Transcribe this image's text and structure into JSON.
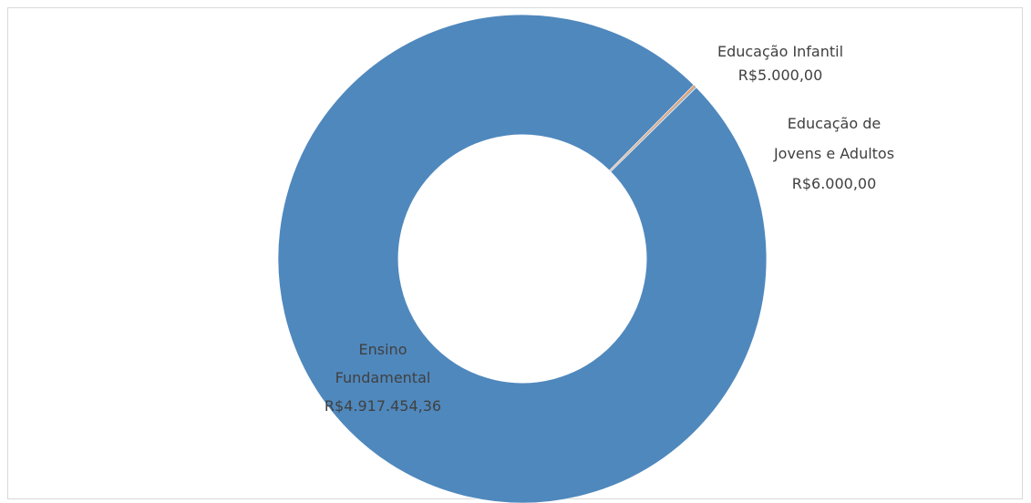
{
  "chart_data": {
    "type": "pie",
    "variant": "donut",
    "categories": [
      "Educação Infantil",
      "Educação de Jovens e Adultos",
      "Ensino Fundamental"
    ],
    "values": [
      5000.0,
      6000.0,
      4917454.36
    ],
    "value_labels": [
      "R$5.000,00",
      "R$6.000,00",
      "R$4.917.454,36"
    ],
    "label_lines": [
      [
        "Educação Infantil",
        "R$5.000,00"
      ],
      [
        "Educação de",
        "Jovens e Adultos",
        "R$6.000,00"
      ],
      [
        "Ensino",
        "Fundamental",
        "R$4.917.454,36"
      ]
    ],
    "colors": [
      "#ED7D31",
      "#A5A5A5",
      "#4F88BD"
    ],
    "title": "",
    "legend": "none"
  }
}
